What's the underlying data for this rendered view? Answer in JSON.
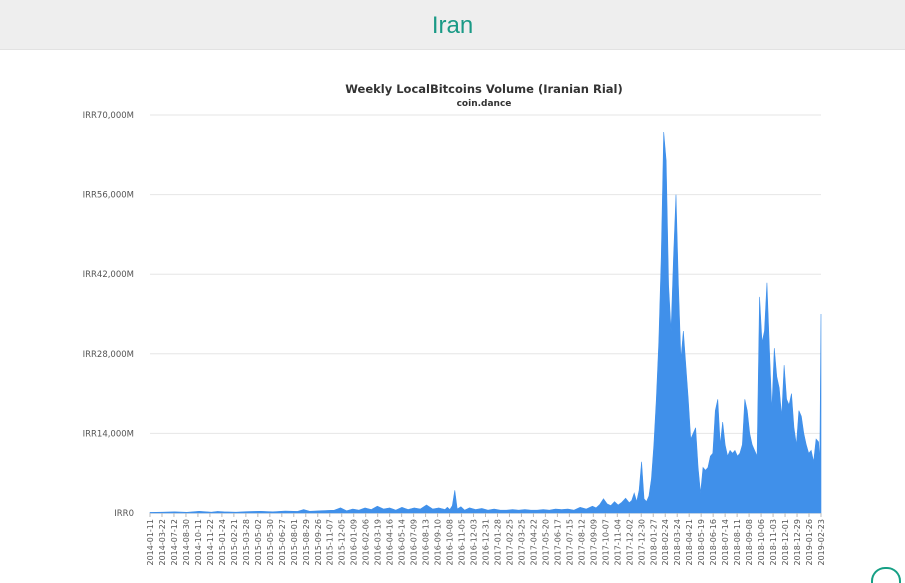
{
  "header": {
    "title": "Iran"
  },
  "chart_data": {
    "type": "area",
    "title": "Weekly LocalBitcoins Volume (Iranian Rial)",
    "subtitle": "coin.dance",
    "xlabel": "",
    "ylabel": "",
    "ylim": [
      0,
      70000
    ],
    "y_ticks": [
      0,
      14000,
      28000,
      42000,
      56000,
      70000
    ],
    "y_tick_labels": [
      "IRR0",
      "IRR14,000M",
      "IRR28,000M",
      "IRR42,000M",
      "IRR56,000M",
      "IRR70,000M"
    ],
    "x_tick_labels": [
      "2014-01-11",
      "2014-03-22",
      "2014-07-12",
      "2014-08-30",
      "2014-10-11",
      "2014-11-22",
      "2015-01-24",
      "2015-02-21",
      "2015-03-28",
      "2015-05-02",
      "2015-05-30",
      "2015-06-27",
      "2015-08-01",
      "2015-08-29",
      "2015-09-26",
      "2015-11-07",
      "2015-12-05",
      "2016-01-09",
      "2016-02-06",
      "2016-03-19",
      "2016-04-16",
      "2016-05-14",
      "2016-07-09",
      "2016-08-13",
      "2016-09-10",
      "2016-10-08",
      "2016-11-05",
      "2016-12-03",
      "2016-12-31",
      "2017-01-28",
      "2017-02-25",
      "2017-03-25",
      "2017-04-22",
      "2017-05-20",
      "2017-06-17",
      "2017-07-15",
      "2017-08-12",
      "2017-09-09",
      "2017-10-07",
      "2017-11-04",
      "2017-12-02",
      "2017-12-30",
      "2018-01-27",
      "2018-02-24",
      "2018-03-24",
      "2018-04-21",
      "2018-05-19",
      "2018-06-16",
      "2018-07-14",
      "2018-08-11",
      "2018-09-08",
      "2018-10-06",
      "2018-11-03",
      "2018-12-01",
      "2018-12-29",
      "2019-01-26",
      "2019-02-23"
    ],
    "grid": true,
    "legend": "none",
    "colors": {
      "area": "#4090ea",
      "grid": "#e6e6e6",
      "axis": "#555555"
    },
    "series": [
      {
        "points": [
          [
            0,
            100
          ],
          [
            10,
            150
          ],
          [
            20,
            200
          ],
          [
            30,
            120
          ],
          [
            40,
            300
          ],
          [
            50,
            150
          ],
          [
            55,
            280
          ],
          [
            60,
            200
          ],
          [
            70,
            150
          ],
          [
            80,
            250
          ],
          [
            90,
            300
          ],
          [
            100,
            200
          ],
          [
            110,
            350
          ],
          [
            120,
            280
          ],
          [
            125,
            600
          ],
          [
            130,
            300
          ],
          [
            140,
            400
          ],
          [
            150,
            500
          ],
          [
            155,
            900
          ],
          [
            160,
            400
          ],
          [
            165,
            700
          ],
          [
            170,
            500
          ],
          [
            175,
            900
          ],
          [
            180,
            600
          ],
          [
            185,
            1200
          ],
          [
            190,
            700
          ],
          [
            195,
            900
          ],
          [
            200,
            500
          ],
          [
            205,
            1000
          ],
          [
            210,
            600
          ],
          [
            215,
            900
          ],
          [
            220,
            700
          ],
          [
            225,
            1400
          ],
          [
            230,
            700
          ],
          [
            235,
            900
          ],
          [
            240,
            600
          ],
          [
            242,
            1000
          ],
          [
            244,
            600
          ],
          [
            246,
            1300
          ],
          [
            248,
            4000
          ],
          [
            250,
            700
          ],
          [
            253,
            1100
          ],
          [
            256,
            500
          ],
          [
            260,
            900
          ],
          [
            265,
            600
          ],
          [
            270,
            800
          ],
          [
            275,
            500
          ],
          [
            280,
            700
          ],
          [
            285,
            500
          ],
          [
            290,
            500
          ],
          [
            295,
            600
          ],
          [
            300,
            500
          ],
          [
            305,
            600
          ],
          [
            310,
            500
          ],
          [
            315,
            500
          ],
          [
            320,
            600
          ],
          [
            325,
            500
          ],
          [
            330,
            700
          ],
          [
            335,
            600
          ],
          [
            340,
            700
          ],
          [
            345,
            500
          ],
          [
            350,
            1000
          ],
          [
            355,
            700
          ],
          [
            360,
            1200
          ],
          [
            363,
            900
          ],
          [
            366,
            1500
          ],
          [
            369,
            2500
          ],
          [
            372,
            1600
          ],
          [
            375,
            1300
          ],
          [
            378,
            2000
          ],
          [
            381,
            1400
          ],
          [
            384,
            1900
          ],
          [
            387,
            2600
          ],
          [
            390,
            1800
          ],
          [
            392,
            2200
          ],
          [
            394,
            3500
          ],
          [
            396,
            2000
          ],
          [
            398,
            4000
          ],
          [
            400,
            9000
          ],
          [
            402,
            2500
          ],
          [
            404,
            2000
          ],
          [
            406,
            3000
          ],
          [
            408,
            6000
          ],
          [
            410,
            12000
          ],
          [
            412,
            20000
          ],
          [
            414,
            30000
          ],
          [
            416,
            45000
          ],
          [
            418,
            67000
          ],
          [
            420,
            62000
          ],
          [
            422,
            40000
          ],
          [
            424,
            32000
          ],
          [
            426,
            45000
          ],
          [
            428,
            56000
          ],
          [
            430,
            40000
          ],
          [
            432,
            27000
          ],
          [
            434,
            32000
          ],
          [
            436,
            26000
          ],
          [
            438,
            20000
          ],
          [
            440,
            13000
          ],
          [
            442,
            14000
          ],
          [
            444,
            15000
          ],
          [
            446,
            8000
          ],
          [
            448,
            3500
          ],
          [
            450,
            8000
          ],
          [
            452,
            7500
          ],
          [
            454,
            8000
          ],
          [
            456,
            10000
          ],
          [
            458,
            10500
          ],
          [
            460,
            18000
          ],
          [
            462,
            20000
          ],
          [
            464,
            12000
          ],
          [
            466,
            16000
          ],
          [
            468,
            12000
          ],
          [
            470,
            10000
          ],
          [
            472,
            11000
          ],
          [
            474,
            10500
          ],
          [
            476,
            11000
          ],
          [
            478,
            10000
          ],
          [
            480,
            10500
          ],
          [
            482,
            12000
          ],
          [
            484,
            20000
          ],
          [
            486,
            18000
          ],
          [
            488,
            14000
          ],
          [
            490,
            12000
          ],
          [
            492,
            11000
          ],
          [
            494,
            10000
          ],
          [
            496,
            38000
          ],
          [
            498,
            30000
          ],
          [
            500,
            32000
          ],
          [
            502,
            40500
          ],
          [
            504,
            29000
          ],
          [
            506,
            18000
          ],
          [
            508,
            29000
          ],
          [
            510,
            24000
          ],
          [
            512,
            22000
          ],
          [
            514,
            17000
          ],
          [
            516,
            26000
          ],
          [
            518,
            20000
          ],
          [
            520,
            19000
          ],
          [
            522,
            21000
          ],
          [
            524,
            15000
          ],
          [
            526,
            12000
          ],
          [
            528,
            18000
          ],
          [
            530,
            17000
          ],
          [
            532,
            14000
          ],
          [
            534,
            12000
          ],
          [
            536,
            10500
          ],
          [
            538,
            11000
          ],
          [
            540,
            9000
          ],
          [
            542,
            13000
          ],
          [
            544,
            12500
          ],
          [
            545,
            9000
          ],
          [
            546,
            35000
          ]
        ]
      }
    ]
  }
}
